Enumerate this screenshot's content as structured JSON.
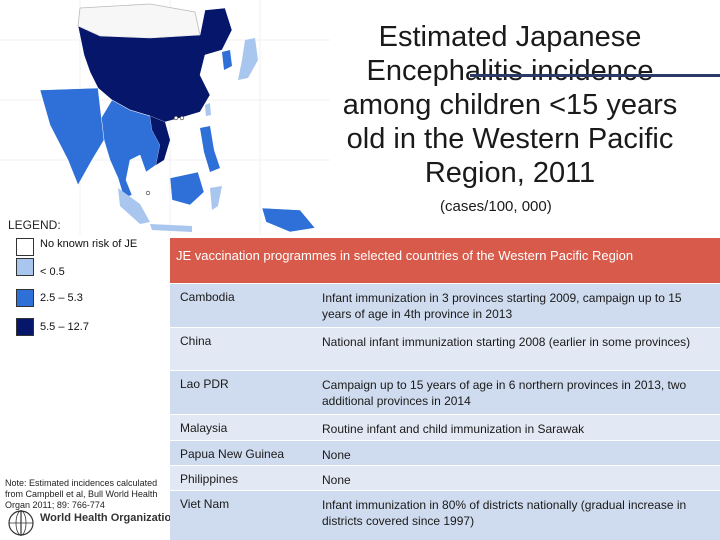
{
  "title": "Estimated Japanese Encephalitis incidence among children <15 years old in the Western Pacific Region, 2011",
  "subtitle": "(cases/100, 000)",
  "legend": {
    "title": "LEGEND:",
    "items": [
      {
        "label": "No known risk of JE",
        "color": "#ffffff"
      },
      {
        "label": "< 0.5",
        "color": "#a9c6ee"
      },
      {
        "label": "2.5 – 5.3",
        "color": "#2e6fd8"
      },
      {
        "label": "5.5 – 12.7",
        "color": "#06166b"
      }
    ]
  },
  "note": "Note: Estimated incidences calculated from Campbell et al, Bull World Health Organ 2011; 89: 766-774",
  "who_text": "World Health Organization",
  "table": {
    "header": "JE vaccination programmes in selected countries of the Western Pacific Region",
    "rows": [
      {
        "country": "Cambodia",
        "programme": "Infant immunization in 3 provinces starting 2009, campaign up to 15 years of age in 4th province in 2013"
      },
      {
        "country": "China",
        "programme": "National infant immunization starting 2008 (earlier in some provinces)"
      },
      {
        "country": "Lao PDR",
        "programme": "Campaign up to 15 years of age in 6 northern provinces in 2013, two additional provinces in 2014"
      },
      {
        "country": "Malaysia",
        "programme": "Routine infant and child immunization in Sarawak"
      },
      {
        "country": "Papua New Guinea",
        "programme": "None"
      },
      {
        "country": "Philippines",
        "programme": "None"
      },
      {
        "country": "Viet Nam",
        "programme": "Infant immunization in 80% of districts nationally (gradual increase in districts covered since 1997)"
      }
    ]
  }
}
